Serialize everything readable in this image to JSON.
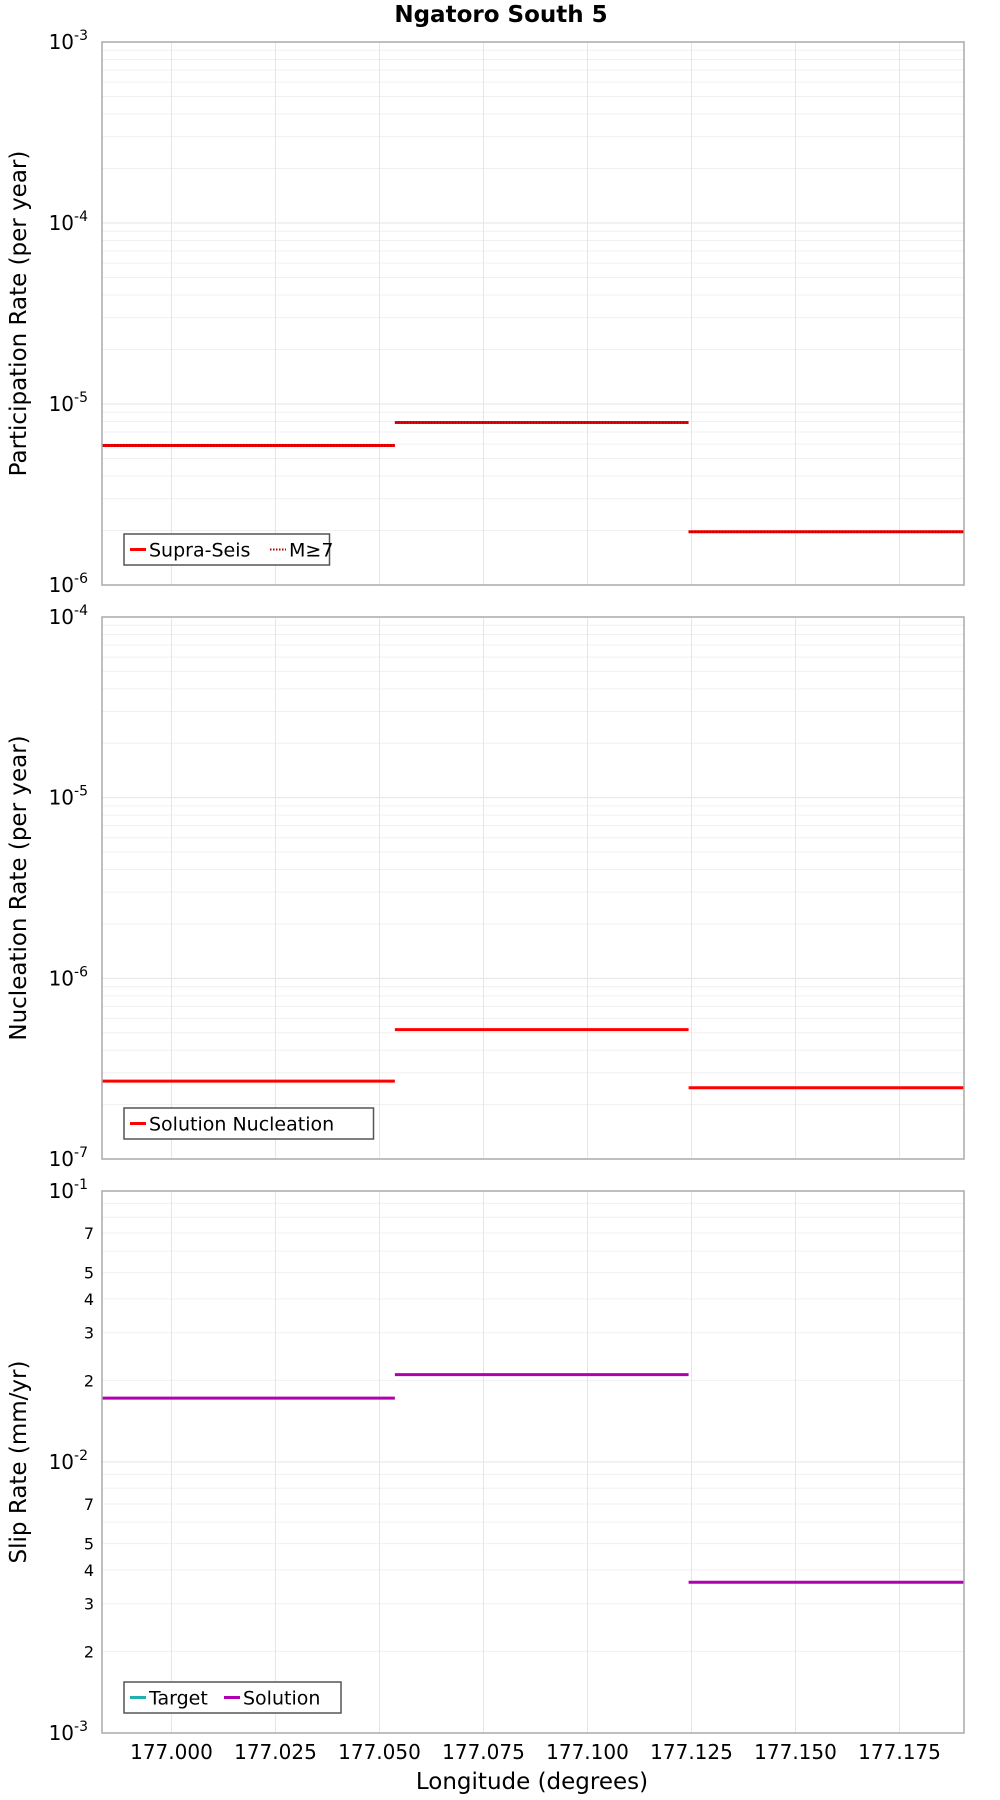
{
  "title": "Ngatoro South 5",
  "x_axis": {
    "label": "Longitude (degrees)",
    "range": [
      176.9833,
      177.1905
    ],
    "ticks": [
      177.0,
      177.025,
      177.05,
      177.075,
      177.1,
      177.125,
      177.15,
      177.175
    ],
    "tick_labels": [
      "177.000",
      "177.025",
      "177.050",
      "177.075",
      "177.100",
      "177.125",
      "177.150",
      "177.175"
    ]
  },
  "colors": {
    "red": "#ff0000",
    "magenta": "#b000b0",
    "teal": "#20b0b0",
    "grid": "#e6e6e6",
    "frame": "#aaaaaa"
  },
  "chart_data": [
    {
      "type": "line",
      "panel": "participation",
      "ylabel": "Participation Rate (per year)",
      "yscale": "log",
      "ylim": [
        1e-06,
        0.001
      ],
      "ytick_labels": [
        {
          "value": 0.001,
          "base": "10",
          "exp": "-3"
        },
        {
          "value": 0.0001,
          "base": "10",
          "exp": "-4"
        },
        {
          "value": 1e-05,
          "base": "10",
          "exp": "-5"
        },
        {
          "value": 1e-06,
          "base": "10",
          "exp": "-6"
        }
      ],
      "series": [
        {
          "name": "Supra-Seis",
          "style": "solid",
          "color": "#ff0000",
          "segments": [
            {
              "x": [
                176.9833,
                177.0537
              ],
              "y": 5.9e-06
            },
            {
              "x": [
                177.0537,
                177.1243
              ],
              "y": 7.9e-06
            },
            {
              "x": [
                177.1243,
                177.1905
              ],
              "y": 1.97e-06
            }
          ]
        },
        {
          "name": "M≥7",
          "style": "dotted",
          "color": "#ff0000",
          "segments": [
            {
              "x": [
                176.9833,
                177.0537
              ],
              "y": 5.9e-06
            },
            {
              "x": [
                177.0537,
                177.1243
              ],
              "y": 7.9e-06
            },
            {
              "x": [
                177.1243,
                177.1905
              ],
              "y": 1.97e-06
            }
          ]
        }
      ],
      "legend": [
        "Supra-Seis",
        "M≥7"
      ]
    },
    {
      "type": "line",
      "panel": "nucleation",
      "ylabel": "Nucleation Rate (per year)",
      "yscale": "log",
      "ylim": [
        1e-07,
        0.0001
      ],
      "ytick_labels": [
        {
          "value": 0.0001,
          "base": "10",
          "exp": "-4"
        },
        {
          "value": 1e-05,
          "base": "10",
          "exp": "-5"
        },
        {
          "value": 1e-06,
          "base": "10",
          "exp": "-6"
        },
        {
          "value": 1e-07,
          "base": "10",
          "exp": "-7"
        }
      ],
      "series": [
        {
          "name": "Solution Nucleation",
          "style": "solid",
          "color": "#ff0000",
          "segments": [
            {
              "x": [
                176.9833,
                177.0537
              ],
              "y": 2.7e-07
            },
            {
              "x": [
                177.0537,
                177.1243
              ],
              "y": 5.2e-07
            },
            {
              "x": [
                177.1243,
                177.1905
              ],
              "y": 2.48e-07
            }
          ]
        }
      ],
      "legend": [
        "Solution Nucleation"
      ]
    },
    {
      "type": "line",
      "panel": "slip",
      "ylabel": "Slip Rate (mm/yr)",
      "yscale": "log",
      "ylim": [
        0.001,
        0.1
      ],
      "ytick_labels": [
        {
          "value": 0.1,
          "base": "10",
          "exp": "-1"
        },
        {
          "value": 0.01,
          "base": "10",
          "exp": "-2"
        },
        {
          "value": 0.001,
          "base": "10",
          "exp": "-3"
        }
      ],
      "minor_tick_labels": [
        {
          "value": 0.07,
          "label": "7"
        },
        {
          "value": 0.05,
          "label": "5"
        },
        {
          "value": 0.04,
          "label": "4"
        },
        {
          "value": 0.03,
          "label": "3"
        },
        {
          "value": 0.02,
          "label": "2"
        },
        {
          "value": 0.007,
          "label": "7"
        },
        {
          "value": 0.005,
          "label": "5"
        },
        {
          "value": 0.004,
          "label": "4"
        },
        {
          "value": 0.003,
          "label": "3"
        },
        {
          "value": 0.002,
          "label": "2"
        }
      ],
      "series": [
        {
          "name": "Target",
          "style": "solid",
          "color": "#20b0b0",
          "segments": []
        },
        {
          "name": "Solution",
          "style": "solid",
          "color": "#b000b0",
          "segments": [
            {
              "x": [
                176.9833,
                177.0537
              ],
              "y": 0.0172
            },
            {
              "x": [
                177.0537,
                177.1243
              ],
              "y": 0.021
            },
            {
              "x": [
                177.1243,
                177.1905
              ],
              "y": 0.0036
            }
          ]
        }
      ],
      "legend": [
        "Target",
        "Solution"
      ]
    }
  ]
}
